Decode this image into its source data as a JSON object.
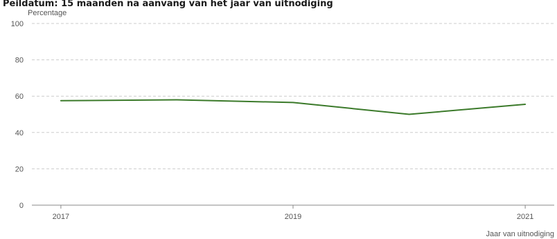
{
  "chart_data": {
    "type": "line",
    "title": "Peildatum: 15 maanden na aanvang van het jaar van uitnodiging",
    "xlabel": "Jaar van uitnodiging",
    "ylabel": "Percentage",
    "x": [
      2017,
      2018,
      2019,
      2020,
      2021
    ],
    "x_ticks": [
      "2017",
      "2019",
      "2021"
    ],
    "y_ticks": [
      "0",
      "20",
      "40",
      "60",
      "80",
      "100"
    ],
    "ylim": [
      0,
      100
    ],
    "xlim": [
      2016.75,
      2021.25
    ],
    "grid": true,
    "series": [
      {
        "values": [
          57.5,
          58,
          56.5,
          50,
          55.5
        ],
        "color": "#3b7a2a"
      }
    ]
  }
}
